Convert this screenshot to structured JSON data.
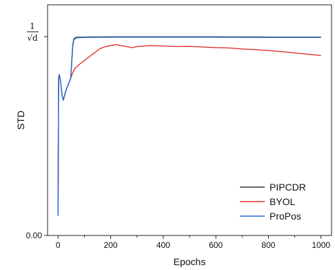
{
  "chart_data": {
    "type": "line",
    "xlabel": "Epochs",
    "ylabel": "STD",
    "xlim": [
      -40,
      1040
    ],
    "ylim": [
      0,
      1.16
    ],
    "x_ticks": [
      0,
      200,
      400,
      600,
      800,
      1000
    ],
    "x_tick_labels": [
      "0",
      "200",
      "400",
      "600",
      "800",
      "1000"
    ],
    "y_ticks": [
      0,
      1
    ],
    "y_tick_labels": {
      "zero": "0.00",
      "top_numerator": "1",
      "top_denominator": "√d"
    },
    "grid": false,
    "legend_position": "bottom-right",
    "series": [
      {
        "name": "PIPCDR",
        "color": "#333333",
        "x": [
          0,
          1,
          2,
          4,
          8,
          12,
          16,
          20,
          24,
          30,
          36,
          42,
          48,
          52,
          56,
          60,
          70,
          100,
          200,
          400,
          600,
          800,
          1000
        ],
        "y": [
          0.1,
          0.5,
          0.79,
          0.81,
          0.79,
          0.74,
          0.7,
          0.68,
          0.7,
          0.73,
          0.75,
          0.77,
          0.79,
          0.88,
          0.96,
          0.99,
          0.997,
          0.998,
          0.999,
          0.999,
          0.999,
          0.998,
          0.998
        ]
      },
      {
        "name": "BYOL",
        "color": "#e03030",
        "x": [
          0,
          1,
          2,
          4,
          8,
          12,
          16,
          20,
          24,
          30,
          36,
          42,
          48,
          56,
          64,
          72,
          80,
          90,
          100,
          120,
          140,
          160,
          180,
          200,
          220,
          240,
          260,
          280,
          300,
          350,
          400,
          450,
          500,
          550,
          600,
          650,
          700,
          750,
          800,
          850,
          900,
          950,
          1000
        ],
        "y": [
          0.1,
          0.5,
          0.79,
          0.81,
          0.79,
          0.74,
          0.7,
          0.68,
          0.7,
          0.73,
          0.75,
          0.77,
          0.79,
          0.82,
          0.84,
          0.85,
          0.86,
          0.87,
          0.88,
          0.9,
          0.92,
          0.94,
          0.95,
          0.955,
          0.96,
          0.955,
          0.95,
          0.945,
          0.95,
          0.955,
          0.953,
          0.95,
          0.951,
          0.948,
          0.945,
          0.943,
          0.938,
          0.935,
          0.93,
          0.925,
          0.918,
          0.912,
          0.905
        ]
      },
      {
        "name": "ProPos",
        "color": "#2f6fd6",
        "x": [
          0,
          1,
          2,
          4,
          8,
          12,
          16,
          20,
          24,
          30,
          36,
          42,
          48,
          52,
          56,
          60,
          70,
          100,
          200,
          400,
          600,
          800,
          1000
        ],
        "y": [
          0.1,
          0.5,
          0.79,
          0.81,
          0.79,
          0.74,
          0.7,
          0.68,
          0.7,
          0.73,
          0.75,
          0.77,
          0.79,
          0.87,
          0.95,
          0.985,
          0.994,
          0.996,
          0.997,
          0.997,
          0.997,
          0.996,
          0.996
        ]
      }
    ]
  }
}
